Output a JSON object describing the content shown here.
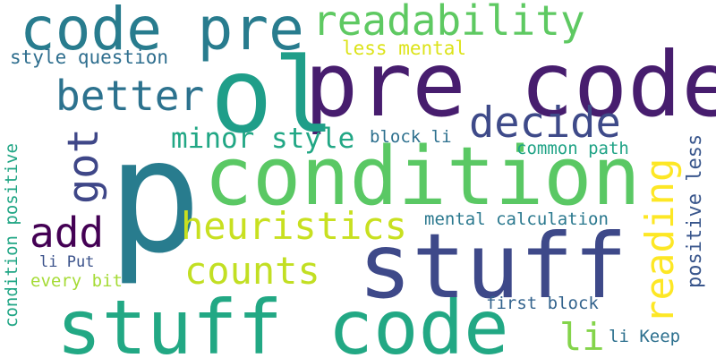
{
  "word_cloud": {
    "background": "#ffffff",
    "words": [
      {
        "id": "p",
        "text": "p",
        "color": "#287c8e"
      },
      {
        "id": "condition",
        "text": "condition",
        "color": "#5ac864"
      },
      {
        "id": "pre_code",
        "text": "pre code",
        "color": "#471d6e"
      },
      {
        "id": "stuff_code",
        "text": "stuff code",
        "color": "#22a884"
      },
      {
        "id": "stuff",
        "text": "stuff",
        "color": "#3e4989"
      },
      {
        "id": "ol",
        "text": "ol",
        "color": "#1f9e89"
      },
      {
        "id": "code_pre",
        "text": "code pre",
        "color": "#287c8e"
      },
      {
        "id": "readability",
        "text": "readability",
        "color": "#5ec962"
      },
      {
        "id": "better",
        "text": "better",
        "color": "#2c728e"
      },
      {
        "id": "decide",
        "text": "decide",
        "color": "#3e4a89"
      },
      {
        "id": "heuristics",
        "text": "heuristics",
        "color": "#c8e020"
      },
      {
        "id": "counts",
        "text": "counts",
        "color": "#c2df23"
      },
      {
        "id": "minor_style",
        "text": "minor style",
        "color": "#22a785"
      },
      {
        "id": "add",
        "text": "add",
        "color": "#440154"
      },
      {
        "id": "li",
        "text": "li",
        "color": "#84d44b"
      },
      {
        "id": "less_mental",
        "text": "less mental",
        "color": "#dce319"
      },
      {
        "id": "style_question",
        "text": "style question",
        "color": "#2e6e8e"
      },
      {
        "id": "block_li",
        "text": "block li",
        "color": "#2d708e"
      },
      {
        "id": "common_path",
        "text": "common path",
        "color": "#20a386"
      },
      {
        "id": "mental_calculation",
        "text": "mental calculation",
        "color": "#2a788e"
      },
      {
        "id": "li_put",
        "text": "li Put",
        "color": "#3b528b"
      },
      {
        "id": "every_bit",
        "text": "every bit",
        "color": "#a5db36"
      },
      {
        "id": "first_block",
        "text": "first block",
        "color": "#33638d"
      },
      {
        "id": "li_keep",
        "text": "li Keep",
        "color": "#2d708e"
      },
      {
        "id": "got",
        "text": "got",
        "color": "#3f4788"
      },
      {
        "id": "reading",
        "text": "reading",
        "color": "#fde725"
      },
      {
        "id": "positive_less",
        "text": "positive less",
        "color": "#39568c"
      },
      {
        "id": "condition_positive",
        "text": "condition positive",
        "color": "#21a685"
      }
    ]
  }
}
